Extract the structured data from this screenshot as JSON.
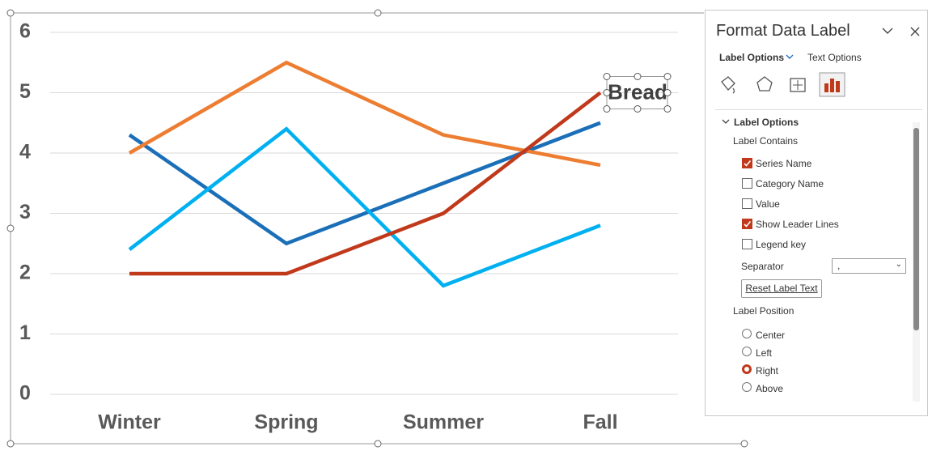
{
  "chart_data": {
    "type": "line",
    "categories": [
      "Winter",
      "Spring",
      "Summer",
      "Fall"
    ],
    "series": [
      {
        "color": "#1a6fb8",
        "values": [
          4.3,
          2.5,
          3.5,
          4.5
        ]
      },
      {
        "color": "#ed7d31",
        "values": [
          4.0,
          5.5,
          4.3,
          3.8
        ]
      },
      {
        "color": "#00b0f0",
        "values": [
          2.4,
          4.4,
          1.8,
          2.8
        ]
      },
      {
        "name": "Bread",
        "color": "#c0391b",
        "values": [
          2,
          2,
          3,
          5
        ]
      }
    ],
    "ylim": [
      0,
      6
    ],
    "yticks": [
      0,
      1,
      2,
      3,
      4,
      5,
      6
    ],
    "grid": true
  },
  "panel": {
    "title": "Format Data Label",
    "tabs": [
      "Label Options",
      "Text Options"
    ],
    "section": "Label Options",
    "contains_heading": "Label Contains",
    "checkboxes": [
      {
        "label": "Series Name",
        "checked": true
      },
      {
        "label": "Category Name",
        "checked": false
      },
      {
        "label": "Value",
        "checked": false
      },
      {
        "label": "Show Leader Lines",
        "checked": true
      },
      {
        "label": "Legend key",
        "checked": false
      }
    ],
    "separator_label": "Separator",
    "separator_value": ",",
    "reset_button": "Reset Label Text",
    "position_heading": "Label Position",
    "radios": [
      {
        "label": "Center",
        "selected": false
      },
      {
        "label": "Left",
        "selected": false
      },
      {
        "label": "Right",
        "selected": true
      },
      {
        "label": "Above",
        "selected": false
      }
    ]
  }
}
